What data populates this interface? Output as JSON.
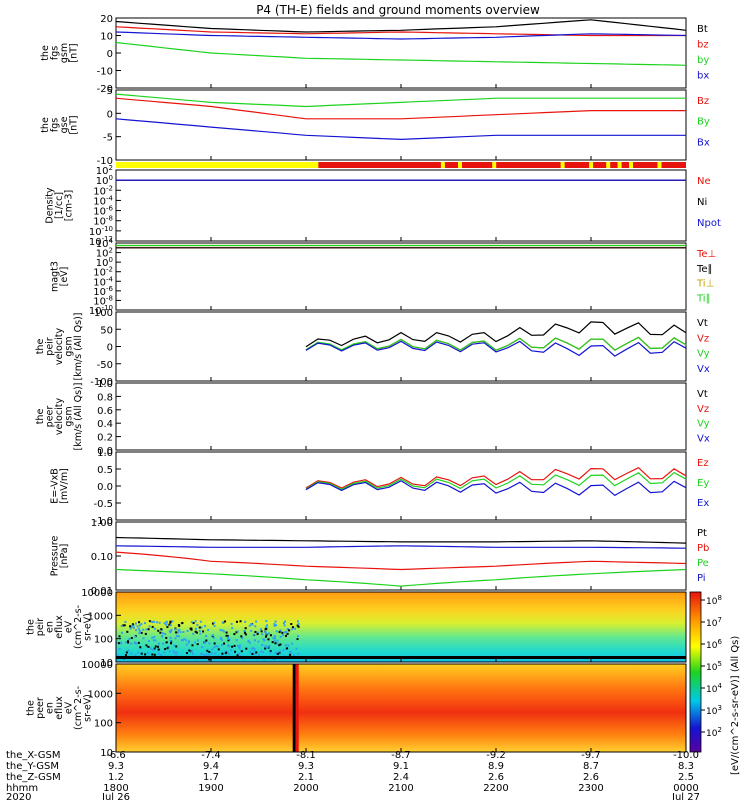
{
  "title": "P4 (TH-E) fields and ground moments overview",
  "time_labels": [
    "1800",
    "1900",
    "2000",
    "2100",
    "2200",
    "2300",
    "0000"
  ],
  "date_labels": {
    "start": "Jul 26",
    "end": "Jul 27"
  },
  "ephemeris": {
    "row_labels": [
      "the_X-GSM",
      "the_Y-GSM",
      "the_Z-GSM",
      "hhmm",
      "2020"
    ],
    "x_gsm": [
      "-6.6",
      "-7.4",
      "-8.1",
      "-8.7",
      "-9.2",
      "-9.7",
      "-10.0"
    ],
    "y_gsm": [
      "9.3",
      "9.4",
      "9.3",
      "9.1",
      "8.9",
      "8.7",
      "8.3"
    ],
    "z_gsm": [
      "1.2",
      "1.7",
      "2.1",
      "2.4",
      "2.6",
      "2.6",
      "2.5"
    ]
  },
  "colorbar": {
    "label": "[eV/(cm^2-s-sr-eV)] (All Qs)",
    "ticks": [
      "10^8",
      "10^7",
      "10^6",
      "10^5",
      "10^4",
      "10^3",
      "10^2"
    ]
  },
  "colors": {
    "black": "#000000",
    "red": "#e8130d",
    "green": "#1ed31e",
    "blue": "#1414d2",
    "yellow": "#ffff00",
    "olive": "#c8a000"
  },
  "chart_data": [
    {
      "type": "line",
      "panel": "fgs_gsm",
      "ylabel_lines": [
        "the",
        "fgs",
        "gsm",
        "[nT]"
      ],
      "ylim": [
        -20,
        20
      ],
      "yticks": [
        "20",
        "10",
        "0",
        "-10",
        "-20"
      ],
      "x": [
        "1800",
        "1900",
        "2000",
        "2100",
        "2200",
        "2300",
        "0000"
      ],
      "series": [
        {
          "name": "Bt",
          "color": "black",
          "values": [
            18,
            14,
            12,
            13,
            15,
            19,
            13
          ]
        },
        {
          "name": "bz",
          "color": "red",
          "values": [
            15,
            12,
            11,
            12,
            11,
            10,
            10
          ]
        },
        {
          "name": "by",
          "color": "green",
          "values": [
            6,
            0,
            -3,
            -4,
            -5,
            -6,
            -7
          ]
        },
        {
          "name": "bx",
          "color": "blue",
          "values": [
            12,
            10,
            9,
            8,
            9,
            11,
            10
          ]
        }
      ]
    },
    {
      "type": "line",
      "panel": "fgs_gse",
      "ylabel_lines": [
        "the",
        "fgs",
        "gse",
        "[nT]"
      ],
      "ylim": [
        -12,
        5
      ],
      "yticks": [
        "5",
        "0",
        "-5",
        "-10"
      ],
      "x": [
        "1800",
        "1900",
        "2000",
        "2100",
        "2200",
        "2300",
        "0000"
      ],
      "series": [
        {
          "name": "Bz",
          "color": "red",
          "values": [
            3,
            1,
            -2,
            -2,
            -1,
            0,
            0
          ]
        },
        {
          "name": "By",
          "color": "green",
          "values": [
            4,
            2,
            1,
            2,
            3,
            3,
            3
          ]
        },
        {
          "name": "Bx",
          "color": "blue",
          "values": [
            -2,
            -4,
            -6,
            -7,
            -6,
            -6,
            -6
          ]
        }
      ]
    },
    {
      "type": "bar",
      "panel": "mode_bar",
      "segments": [
        {
          "color": "yellow",
          "from": 0,
          "to": 0.355
        },
        {
          "color": "red",
          "from": 0.355,
          "to": 1.0
        }
      ]
    },
    {
      "type": "line",
      "panel": "density",
      "ylabel_lines": [
        "Density",
        "[1/cc]",
        "[cm-3]"
      ],
      "yscale": "log",
      "yticks": [
        "10^2",
        "10^0",
        "10^-2",
        "10^-4",
        "10^-6",
        "10^-8",
        "10^-10",
        "10^-12"
      ],
      "x": [
        "1800",
        "1900",
        "2000",
        "2100",
        "2200",
        "2300",
        "0000"
      ],
      "series": [
        {
          "name": "Ne",
          "color": "red",
          "values": [
            1,
            1,
            1,
            1,
            1,
            1,
            1
          ]
        },
        {
          "name": "Ni",
          "color": "black",
          "values": [
            1,
            1,
            1,
            1,
            1,
            1,
            1
          ]
        },
        {
          "name": "Npot",
          "color": "blue",
          "values": [
            1,
            1,
            1,
            1,
            1,
            1,
            1
          ]
        }
      ]
    },
    {
      "type": "line",
      "panel": "temperature",
      "ylabel_lines": [
        "magt3",
        "[eV]"
      ],
      "yscale": "log",
      "yticks": [
        "10^4",
        "10^2",
        "10^0",
        "10^-2",
        "10^-4",
        "10^-6",
        "10^-8",
        "10^-10"
      ],
      "x": [
        "1800",
        "1900",
        "2000",
        "2100",
        "2200",
        "2300",
        "0000"
      ],
      "series": [
        {
          "name": "Te⊥",
          "color": "red",
          "values": [
            1000,
            1000,
            1000,
            1000,
            1000,
            1000,
            1000
          ]
        },
        {
          "name": "Te∥",
          "color": "black",
          "values": [
            1000,
            1000,
            1000,
            1000,
            1000,
            1000,
            1000
          ]
        },
        {
          "name": "Ti⊥",
          "color": "olive",
          "values": [
            3000,
            3000,
            3000,
            3000,
            3000,
            3000,
            3000
          ]
        },
        {
          "name": "Ti∥",
          "color": "green",
          "values": [
            3000,
            3000,
            3000,
            3000,
            3000,
            3000,
            3000
          ]
        }
      ]
    },
    {
      "type": "line",
      "panel": "peir_velocity",
      "ylabel_lines": [
        "the",
        "peir",
        "velocity",
        "gsm",
        "[km/s (All Qs)]"
      ],
      "ylim": [
        -100,
        100
      ],
      "yticks": [
        "100",
        "50",
        "0",
        "-50",
        "-100"
      ],
      "x": [
        "1800",
        "1900",
        "2000",
        "2100",
        "2200",
        "2300",
        "0000"
      ],
      "series": [
        {
          "name": "Vt",
          "color": "black",
          "values": [
            null,
            null,
            10,
            25,
            30,
            60,
            40
          ]
        },
        {
          "name": "Vz",
          "color": "red",
          "values": [
            null,
            null,
            0,
            5,
            5,
            10,
            5
          ]
        },
        {
          "name": "Vy",
          "color": "green",
          "values": [
            null,
            null,
            2,
            5,
            5,
            10,
            5
          ]
        },
        {
          "name": "Vx",
          "color": "blue",
          "values": [
            null,
            null,
            0,
            0,
            0,
            -10,
            -5
          ]
        }
      ]
    },
    {
      "type": "line",
      "panel": "peer_velocity",
      "ylabel_lines": [
        "the",
        "peer",
        "velocity",
        "gsm",
        "[km/s (All Qs)]"
      ],
      "ylim": [
        0.0,
        1.0
      ],
      "yticks": [
        "1.0",
        "0.8",
        "0.6",
        "0.4",
        "0.2",
        "0.0"
      ],
      "legend": [
        "Vt",
        "Vz",
        "Vy",
        "Vx"
      ],
      "legend_colors": [
        "black",
        "red",
        "green",
        "blue"
      ]
    },
    {
      "type": "line",
      "panel": "efield",
      "ylabel_lines": [
        "E=-VxB",
        "[mV/m]"
      ],
      "ylim": [
        -1.0,
        1.0
      ],
      "yticks": [
        "1.0",
        "0.5",
        "0.0",
        "-0.5",
        "-1.0"
      ],
      "x": [
        "1800",
        "1900",
        "2000",
        "2100",
        "2200",
        "2300",
        "0000"
      ],
      "series": [
        {
          "name": "Ez",
          "color": "red",
          "values": [
            null,
            null,
            0.05,
            0.1,
            0.2,
            0.4,
            0.3
          ]
        },
        {
          "name": "Ey",
          "color": "green",
          "values": [
            null,
            null,
            0.02,
            0.05,
            0.1,
            0.2,
            0.2
          ]
        },
        {
          "name": "Ex",
          "color": "blue",
          "values": [
            null,
            null,
            0.0,
            0.0,
            -0.05,
            -0.1,
            -0.05
          ]
        }
      ]
    },
    {
      "type": "line",
      "panel": "pressure",
      "ylabel_lines": [
        "Pressure",
        "[nPa]"
      ],
      "yscale": "log",
      "ylim": [
        0.01,
        1.0
      ],
      "yticks": [
        "1.00",
        "0.10",
        "0.01"
      ],
      "x": [
        "1800",
        "1900",
        "2000",
        "2100",
        "2200",
        "2300",
        "0000"
      ],
      "series": [
        {
          "name": "Pt",
          "color": "black",
          "values": [
            0.35,
            0.3,
            0.28,
            0.26,
            0.26,
            0.28,
            0.24
          ]
        },
        {
          "name": "Pb",
          "color": "red",
          "values": [
            0.13,
            0.07,
            0.05,
            0.04,
            0.05,
            0.07,
            0.06
          ]
        },
        {
          "name": "Pe",
          "color": "green",
          "values": [
            0.04,
            0.03,
            0.02,
            0.013,
            0.02,
            0.03,
            0.04
          ]
        },
        {
          "name": "Pi",
          "color": "blue",
          "values": [
            0.2,
            0.18,
            0.18,
            0.2,
            0.18,
            0.18,
            0.17
          ]
        }
      ]
    },
    {
      "type": "heatmap",
      "panel": "peir_eflux",
      "ylabel_lines": [
        "the",
        "peir",
        "en",
        "eflux",
        "eV",
        "(cm^2-s-",
        "sr-eV)"
      ],
      "yscale": "log",
      "yticks": [
        "10000",
        "1000",
        "100",
        "10"
      ]
    },
    {
      "type": "heatmap",
      "panel": "peer_eflux",
      "ylabel_lines": [
        "the",
        "peer",
        "en",
        "eflux",
        "eV",
        "(cm^2-s-",
        "sr-eV)"
      ],
      "yscale": "log",
      "yticks": [
        "10000",
        "1000",
        "100",
        "10"
      ]
    }
  ]
}
